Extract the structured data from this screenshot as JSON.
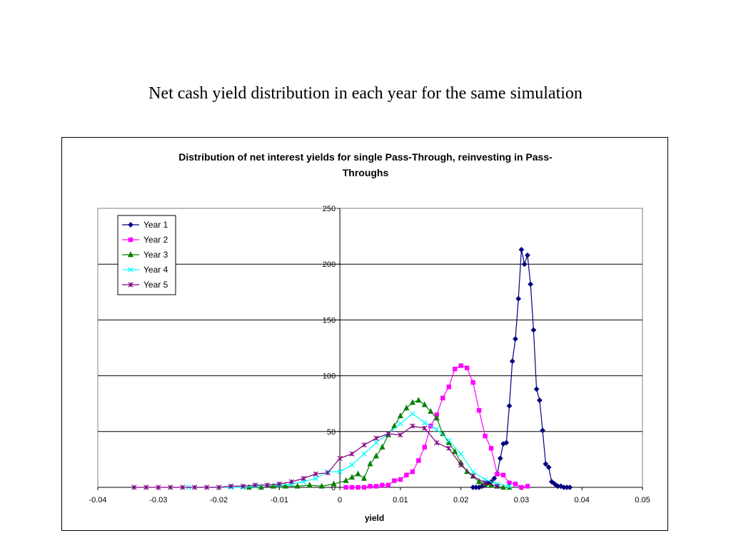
{
  "slide": {
    "title": "Net cash yield distribution in each year for the same simulation"
  },
  "chart_data": {
    "type": "line",
    "title_line1": "Distribution of net interest yields for single Pass-Through, reinvesting in Pass-",
    "title_line2": "Throughs",
    "xlabel": "yield",
    "ylabel": "",
    "xlim": [
      -0.04,
      0.05
    ],
    "ylim": [
      0,
      250
    ],
    "xticks": [
      -0.04,
      -0.03,
      -0.02,
      -0.01,
      0,
      0.01,
      0.02,
      0.03,
      0.04,
      0.05
    ],
    "xtick_labels": [
      "-0.04",
      "-0.03",
      "-0.02",
      "-0.01",
      "0",
      "0.01",
      "0.02",
      "0.03",
      "0.04",
      "0.05"
    ],
    "yticks": [
      0,
      50,
      100,
      150,
      200,
      250
    ],
    "ytick_labels": [
      "0",
      "50",
      "100",
      "150",
      "200",
      "250"
    ],
    "grid": "horizontal",
    "legend_position": "top-left",
    "series": [
      {
        "name": "Year 1",
        "color": "#000080",
        "marker": "diamond",
        "x": [
          0.022,
          0.0225,
          0.023,
          0.0235,
          0.024,
          0.0245,
          0.025,
          0.0255,
          0.026,
          0.0265,
          0.027,
          0.0275,
          0.028,
          0.0285,
          0.029,
          0.0295,
          0.03,
          0.0305,
          0.031,
          0.0315,
          0.032,
          0.0325,
          0.033,
          0.0335,
          0.034,
          0.0345,
          0.035,
          0.0355,
          0.036,
          0.0365,
          0.037,
          0.0375,
          0.038
        ],
        "y": [
          0,
          0,
          0,
          1,
          2,
          4,
          5,
          8,
          12,
          26,
          39,
          40,
          73,
          113,
          133,
          169,
          213,
          200,
          208,
          182,
          141,
          88,
          78,
          51,
          21,
          18,
          5,
          3,
          1,
          1,
          0,
          0,
          0
        ]
      },
      {
        "name": "Year 2",
        "color": "#ff00ff",
        "marker": "square",
        "x": [
          0.001,
          0.002,
          0.003,
          0.004,
          0.005,
          0.006,
          0.007,
          0.008,
          0.009,
          0.01,
          0.011,
          0.012,
          0.013,
          0.014,
          0.015,
          0.016,
          0.017,
          0.018,
          0.019,
          0.02,
          0.021,
          0.022,
          0.023,
          0.024,
          0.025,
          0.026,
          0.027,
          0.028,
          0.029,
          0.03,
          0.031
        ],
        "y": [
          0,
          0,
          0,
          0,
          1,
          1,
          2,
          2,
          6,
          7,
          11,
          14,
          24,
          36,
          55,
          65,
          80,
          90,
          106,
          109,
          107,
          94,
          69,
          46,
          35,
          12,
          11,
          4,
          3,
          0,
          1
        ]
      },
      {
        "name": "Year 3",
        "color": "#008000",
        "marker": "triangle",
        "x": [
          -0.015,
          -0.013,
          -0.011,
          -0.009,
          -0.007,
          -0.005,
          -0.003,
          -0.001,
          0.001,
          0.002,
          0.003,
          0.004,
          0.005,
          0.006,
          0.007,
          0.008,
          0.009,
          0.01,
          0.011,
          0.012,
          0.013,
          0.014,
          0.015,
          0.016,
          0.017,
          0.018,
          0.019,
          0.02,
          0.021,
          0.022,
          0.023,
          0.024,
          0.025,
          0.026,
          0.027,
          0.028
        ],
        "y": [
          0,
          0,
          1,
          1,
          1,
          2,
          1,
          3,
          6,
          9,
          12,
          8,
          21,
          28,
          36,
          47,
          55,
          64,
          71,
          76,
          78,
          74,
          68,
          62,
          48,
          40,
          32,
          22,
          14,
          10,
          5,
          3,
          2,
          1,
          0,
          0
        ]
      },
      {
        "name": "Year 4",
        "color": "#00ffff",
        "marker": "x",
        "x": [
          -0.025,
          -0.02,
          -0.018,
          -0.016,
          -0.014,
          -0.012,
          -0.01,
          -0.008,
          -0.006,
          -0.004,
          -0.002,
          0,
          0.002,
          0.004,
          0.006,
          0.008,
          0.01,
          0.012,
          0.014,
          0.016,
          0.018,
          0.02,
          0.022,
          0.024,
          0.026,
          0.028
        ],
        "y": [
          0,
          0,
          0,
          0,
          1,
          2,
          2,
          3,
          5,
          8,
          14,
          14,
          20,
          30,
          40,
          48,
          57,
          66,
          58,
          52,
          42,
          30,
          14,
          7,
          3,
          1
        ]
      },
      {
        "name": "Year 5",
        "color": "#800080",
        "marker": "star",
        "x": [
          -0.034,
          -0.032,
          -0.03,
          -0.028,
          -0.026,
          -0.024,
          -0.022,
          -0.02,
          -0.018,
          -0.016,
          -0.014,
          -0.012,
          -0.01,
          -0.008,
          -0.006,
          -0.004,
          -0.002,
          0,
          0.002,
          0.004,
          0.006,
          0.008,
          0.01,
          0.012,
          0.014,
          0.016,
          0.018,
          0.02,
          0.022,
          0.024,
          0.026
        ],
        "y": [
          0,
          0,
          0,
          0,
          0,
          0,
          0,
          0,
          1,
          1,
          2,
          2,
          3,
          5,
          8,
          12,
          13,
          26,
          30,
          38,
          44,
          48,
          47,
          55,
          53,
          40,
          35,
          20,
          10,
          4,
          1
        ]
      }
    ]
  }
}
